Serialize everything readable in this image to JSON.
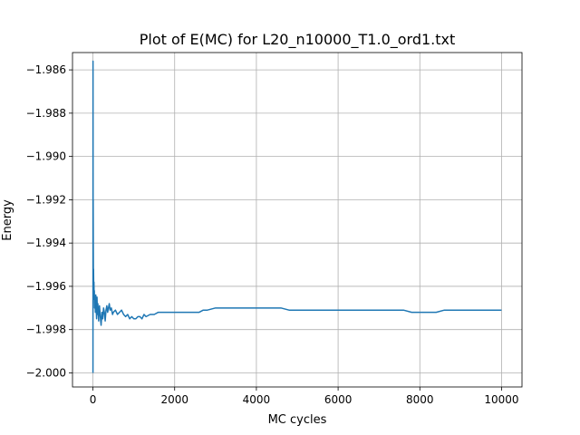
{
  "chart_data": {
    "type": "line",
    "title": "Plot of E(MC) for L20_n10000_T1.0_ord1.txt",
    "xlabel": "MC cycles",
    "ylabel": "Energy",
    "xlim": [
      -500,
      10500
    ],
    "ylim": [
      -2.00065,
      -1.9852
    ],
    "grid": true,
    "x_ticks": [
      0,
      2000,
      4000,
      6000,
      8000,
      10000
    ],
    "x_tick_labels": [
      "0",
      "2000",
      "4000",
      "6000",
      "8000",
      "10000"
    ],
    "y_ticks": [
      -2.0,
      -1.998,
      -1.996,
      -1.994,
      -1.992,
      -1.99,
      -1.988,
      -1.986
    ],
    "y_tick_labels": [
      "−2.000",
      "−1.998",
      "−1.996",
      "−1.994",
      "−1.992",
      "−1.990",
      "−1.988",
      "−1.986"
    ],
    "series": [
      {
        "color": "#1f77b4",
        "x": [
          1,
          2,
          4,
          6,
          8,
          10,
          12,
          15,
          20,
          25,
          30,
          35,
          40,
          50,
          60,
          70,
          80,
          90,
          100,
          110,
          120,
          130,
          140,
          150,
          160,
          180,
          200,
          220,
          240,
          260,
          280,
          300,
          320,
          340,
          360,
          380,
          400,
          420,
          450,
          480,
          500,
          550,
          600,
          650,
          700,
          750,
          800,
          850,
          900,
          950,
          1000,
          1050,
          1100,
          1150,
          1200,
          1250,
          1300,
          1400,
          1500,
          1600,
          1700,
          1800,
          1900,
          2000,
          2200,
          2400,
          2600,
          2700,
          2800,
          3000,
          3200,
          3400,
          3600,
          3800,
          4000,
          4200,
          4400,
          4600,
          4800,
          5000,
          5200,
          5400,
          5600,
          5800,
          6000,
          6200,
          6400,
          6600,
          6800,
          7000,
          7200,
          7400,
          7600,
          7800,
          8000,
          8200,
          8400,
          8600,
          8800,
          9000,
          9200,
          9400,
          9600,
          9800,
          10000
        ],
        "y": [
          -2.0,
          -1.9856,
          -1.9925,
          -1.992,
          -1.9935,
          -1.9948,
          -1.996,
          -1.9952,
          -1.9962,
          -1.9958,
          -1.9966,
          -1.9962,
          -1.997,
          -1.9966,
          -1.9972,
          -1.9964,
          -1.997,
          -1.9975,
          -1.9965,
          -1.9973,
          -1.9968,
          -1.9972,
          -1.9976,
          -1.9971,
          -1.9969,
          -1.9974,
          -1.9978,
          -1.9972,
          -1.9975,
          -1.997,
          -1.9972,
          -1.9976,
          -1.9971,
          -1.9969,
          -1.9972,
          -1.997,
          -1.9968,
          -1.9971,
          -1.997,
          -1.9973,
          -1.9972,
          -1.9971,
          -1.9973,
          -1.9972,
          -1.9971,
          -1.9973,
          -1.9974,
          -1.9973,
          -1.9975,
          -1.9974,
          -1.9975,
          -1.9975,
          -1.9974,
          -1.9974,
          -1.9975,
          -1.9973,
          -1.9974,
          -1.9973,
          -1.9973,
          -1.9972,
          -1.9972,
          -1.9972,
          -1.9972,
          -1.9972,
          -1.9972,
          -1.9972,
          -1.9972,
          -1.9971,
          -1.9971,
          -1.997,
          -1.997,
          -1.997,
          -1.997,
          -1.997,
          -1.997,
          -1.997,
          -1.997,
          -1.997,
          -1.9971,
          -1.9971,
          -1.9971,
          -1.9971,
          -1.9971,
          -1.9971,
          -1.9971,
          -1.9971,
          -1.9971,
          -1.9971,
          -1.9971,
          -1.9971,
          -1.9971,
          -1.9971,
          -1.9971,
          -1.9972,
          -1.9972,
          -1.9972,
          -1.9972,
          -1.9971,
          -1.9971,
          -1.9971,
          -1.9971,
          -1.9971,
          -1.9971,
          -1.9971,
          -1.9971
        ]
      }
    ]
  }
}
